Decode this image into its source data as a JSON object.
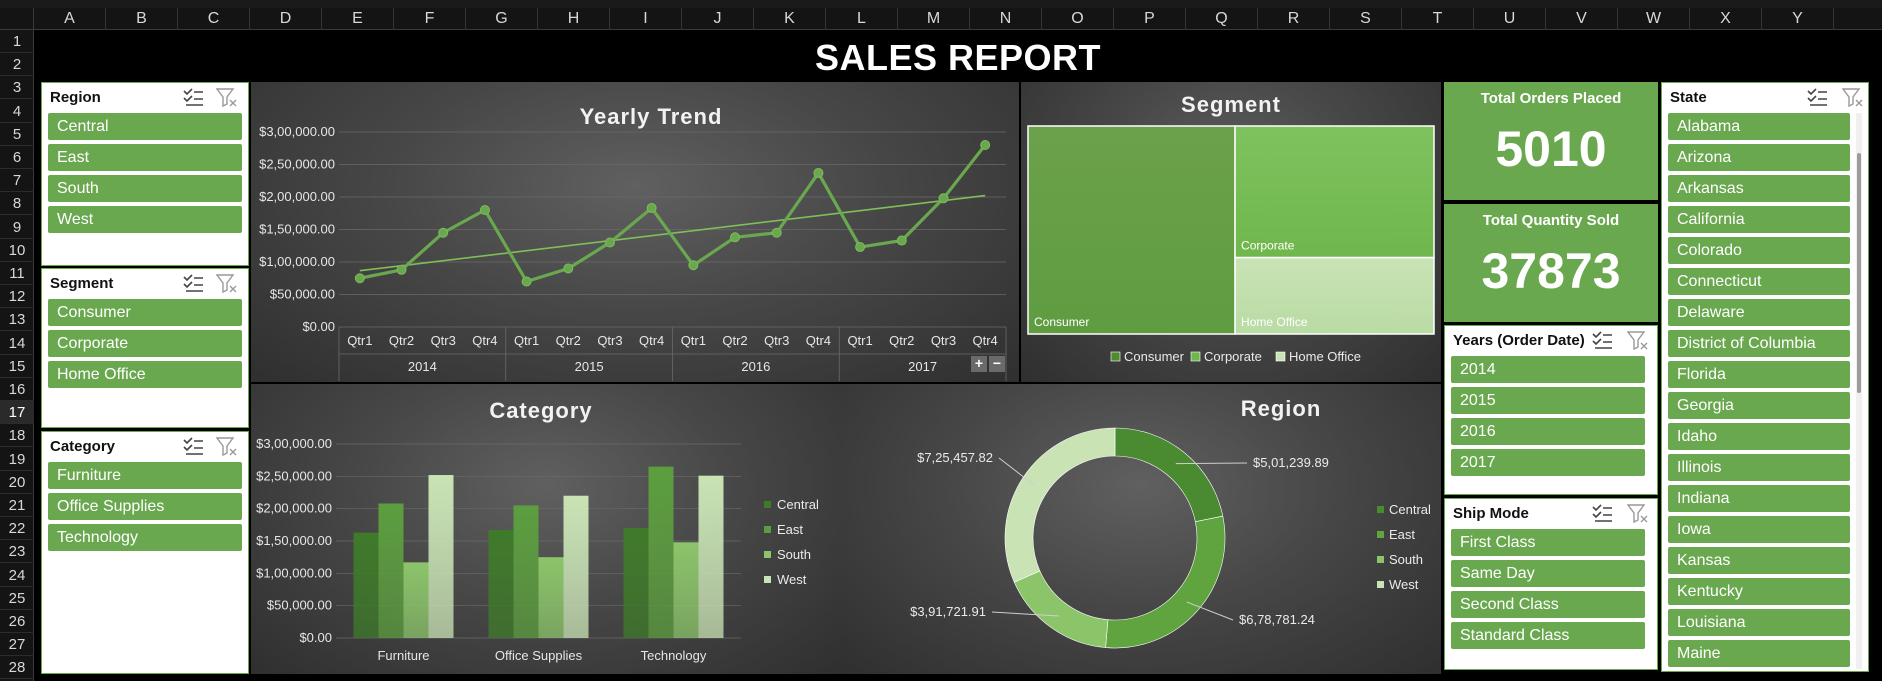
{
  "spreadsheet": {
    "columns": [
      "A",
      "B",
      "C",
      "D",
      "E",
      "F",
      "G",
      "H",
      "I",
      "J",
      "K",
      "L",
      "M",
      "N",
      "O",
      "P",
      "Q",
      "R",
      "S",
      "T",
      "U",
      "V",
      "W",
      "X",
      "Y"
    ],
    "rows": [
      "1",
      "2",
      "3",
      "4",
      "5",
      "6",
      "7",
      "8",
      "9",
      "10",
      "11",
      "12",
      "13",
      "14",
      "15",
      "16",
      "17",
      "18",
      "19",
      "20",
      "21",
      "22",
      "23",
      "24",
      "25",
      "26",
      "27",
      "28"
    ],
    "selected_row": "17"
  },
  "report_title": "SALES REPORT",
  "slicers": {
    "region": {
      "title": "Region",
      "items": [
        "Central",
        "East",
        "South",
        "West"
      ]
    },
    "segment": {
      "title": "Segment",
      "items": [
        "Consumer",
        "Corporate",
        "Home Office"
      ]
    },
    "category": {
      "title": "Category",
      "items": [
        "Furniture",
        "Office Supplies",
        "Technology"
      ]
    },
    "years": {
      "title": "Years (Order Date)",
      "items": [
        "2014",
        "2015",
        "2016",
        "2017"
      ]
    },
    "ship_mode": {
      "title": "Ship Mode",
      "items": [
        "First Class",
        "Same Day",
        "Second Class",
        "Standard Class"
      ]
    },
    "state": {
      "title": "State",
      "items": [
        "Alabama",
        "Arizona",
        "Arkansas",
        "California",
        "Colorado",
        "Connecticut",
        "Delaware",
        "District of Columbia",
        "Florida",
        "Georgia",
        "Idaho",
        "Illinois",
        "Indiana",
        "Iowa",
        "Kansas",
        "Kentucky",
        "Louisiana",
        "Maine"
      ]
    }
  },
  "kpis": {
    "orders": {
      "label": "Total Orders Placed",
      "value": "5010"
    },
    "quantity": {
      "label": "Total Quantity Sold",
      "value": "37873"
    }
  },
  "zoom_controls": {
    "plus": "+",
    "minus": "−"
  },
  "colors": {
    "accent": "#6aa84f",
    "central": "#3f7a2a",
    "east": "#5c9e3f",
    "south": "#8cc46a",
    "west": "#c9e3b5"
  },
  "chart_data": [
    {
      "type": "line",
      "title": "Yearly Trend",
      "quarters": [
        "Qtr1",
        "Qtr2",
        "Qtr3",
        "Qtr4"
      ],
      "years": [
        "2014",
        "2015",
        "2016",
        "2017"
      ],
      "values": [
        75000,
        88000,
        145000,
        180000,
        70000,
        90000,
        130000,
        183000,
        95000,
        138000,
        145000,
        237000,
        123000,
        133000,
        198000,
        280000
      ],
      "y_ticks": [
        "$0.00",
        "$50,000.00",
        "$1,00,000.00",
        "$1,50,000.00",
        "$2,00,000.00",
        "$2,50,000.00",
        "$3,00,000.00"
      ],
      "ylim": [
        0,
        300000
      ],
      "trendline": true
    },
    {
      "type": "treemap",
      "title": "Segment",
      "items": [
        {
          "name": "Consumer",
          "share": 0.51
        },
        {
          "name": "Corporate",
          "share": 0.31
        },
        {
          "name": "Home Office",
          "share": 0.18
        }
      ],
      "legend": [
        "Consumer",
        "Corporate",
        "Home Office"
      ],
      "legend_position": "bottom"
    },
    {
      "type": "bar",
      "title": "Category",
      "categories": [
        "Furniture",
        "Office Supplies",
        "Technology"
      ],
      "series": [
        {
          "name": "Central",
          "values": [
            163000,
            167000,
            170000
          ]
        },
        {
          "name": "East",
          "values": [
            208000,
            205000,
            265000
          ]
        },
        {
          "name": "South",
          "values": [
            117000,
            125000,
            148000
          ]
        },
        {
          "name": "West",
          "values": [
            252000,
            220000,
            251000
          ]
        }
      ],
      "y_ticks": [
        "$0.00",
        "$50,000.00",
        "$1,00,000.00",
        "$1,50,000.00",
        "$2,00,000.00",
        "$2,50,000.00",
        "$3,00,000.00"
      ],
      "ylim": [
        0,
        300000
      ],
      "legend_position": "right"
    },
    {
      "type": "pie",
      "title": "Region",
      "slices": [
        {
          "name": "Central",
          "value": 501239.89,
          "label": "$5,01,239.89"
        },
        {
          "name": "East",
          "value": 678781.24,
          "label": "$6,78,781.24"
        },
        {
          "name": "South",
          "value": 391721.91,
          "label": "$3,91,721.91"
        },
        {
          "name": "West",
          "value": 725457.82,
          "label": "$7,25,457.82"
        }
      ],
      "legend": [
        "Central",
        "East",
        "South",
        "West"
      ],
      "legend_position": "right"
    }
  ]
}
